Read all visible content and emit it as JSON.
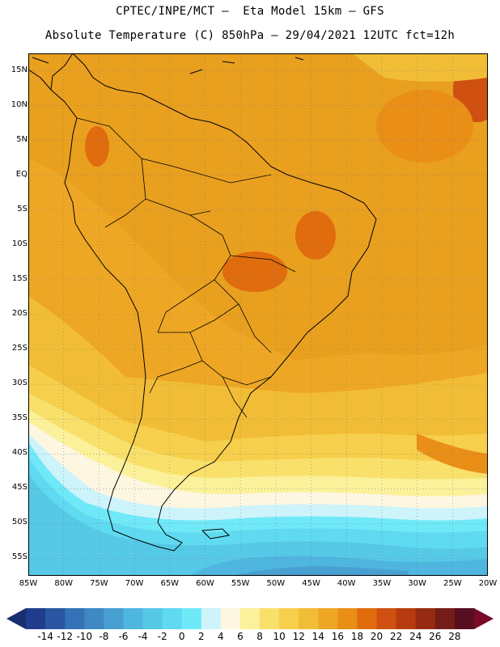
{
  "header": {
    "line1": "CPTEC/INPE/MCT –  Eta Model 15km – GFS",
    "line2": "Absolute Temperature (C) 850hPa – 29/04/2021 12UTC fct=12h"
  },
  "map": {
    "lat_labels": [
      "15N",
      "10N",
      "5N",
      "EQ",
      "5S",
      "10S",
      "15S",
      "20S",
      "25S",
      "30S",
      "35S",
      "40S",
      "45S",
      "50S",
      "55S"
    ],
    "lon_labels": [
      "85W",
      "80W",
      "75W",
      "70W",
      "65W",
      "60W",
      "55W",
      "50W",
      "45W",
      "40W",
      "35W",
      "30W",
      "25W",
      "20W"
    ],
    "lat_range": [
      -57.5,
      17.5
    ],
    "lon_range": [
      -85,
      -20
    ]
  },
  "colorbar": {
    "ticks": [
      "-14",
      "-12",
      "-10",
      "-8",
      "-6",
      "-4",
      "-2",
      "0",
      "2",
      "4",
      "6",
      "8",
      "10",
      "12",
      "14",
      "16",
      "18",
      "20",
      "22",
      "24",
      "26",
      "28"
    ],
    "colors": [
      "#1f3d8c",
      "#2a57a2",
      "#3571b6",
      "#3f88c4",
      "#48a0d2",
      "#4fb6df",
      "#56c9e6",
      "#5fdaf0",
      "#6fe9f8",
      "#cdf3fb",
      "#fdf6e0",
      "#fbf19a",
      "#f9e06b",
      "#f6cf4c",
      "#f2bd36",
      "#eea725",
      "#e98e17",
      "#e06c0e",
      "#cf5010",
      "#b73b0f",
      "#962a12",
      "#751d18",
      "#560f20"
    ],
    "overflow_low": "#1a2f70",
    "overflow_high": "#7a0a2a"
  }
}
